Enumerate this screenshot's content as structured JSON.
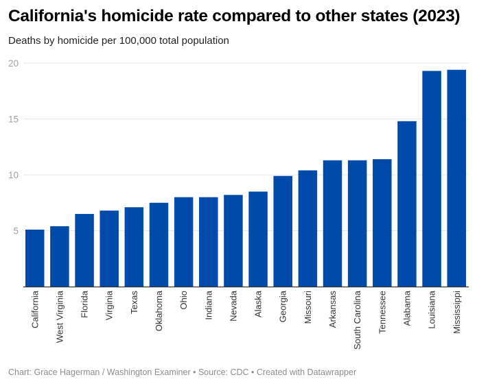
{
  "chart_data": {
    "type": "bar",
    "title": "California's homicide rate compared to other states (2023)",
    "subtitle": "Deaths by homicide per 100,000 total population",
    "xlabel": "",
    "ylabel": "",
    "ylim": [
      0,
      20
    ],
    "yticks": [
      5,
      10,
      15,
      20
    ],
    "grid": true,
    "bar_color": "#004BAA",
    "categories": [
      "California",
      "West Virginia",
      "Florida",
      "Virginia",
      "Texas",
      "Oklahoma",
      "Ohio",
      "Indiana",
      "Nevada",
      "Alaska",
      "Georgia",
      "Missouri",
      "Arkansas",
      "South Carolina",
      "Tennessee",
      "Alabama",
      "Louisiana",
      "Mississippi"
    ],
    "values": [
      5.1,
      5.4,
      6.5,
      6.8,
      7.1,
      7.5,
      8.0,
      8.0,
      8.2,
      8.5,
      9.9,
      10.4,
      11.3,
      11.3,
      11.4,
      14.8,
      19.3,
      19.4
    ],
    "footer": "Chart: Grace Hagerman / Washington Examiner • Source: CDC • Created with Datawrapper"
  }
}
